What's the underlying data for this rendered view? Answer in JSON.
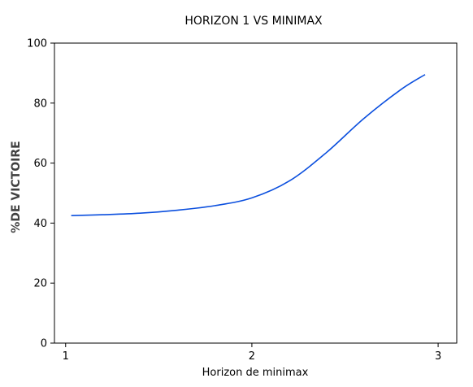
{
  "chart_data": {
    "type": "line",
    "title": "HORIZON 1 VS MINIMAX",
    "xlabel": "Horizon de minimax",
    "ylabel": "%DE VICTOIRE",
    "xlim": [
      0.94,
      3.1
    ],
    "ylim": [
      0,
      100
    ],
    "x_ticks": [
      1,
      2,
      3
    ],
    "y_ticks": [
      0,
      20,
      40,
      60,
      80,
      100
    ],
    "grid": false,
    "series": [
      {
        "color": "#0b4fde",
        "x": [
          1.03,
          1.2,
          1.4,
          1.6,
          1.8,
          2.0,
          2.2,
          2.4,
          2.6,
          2.8,
          2.93
        ],
        "y": [
          42.5,
          42.8,
          43.3,
          44.3,
          45.8,
          48.4,
          54.0,
          63.5,
          74.8,
          84.5,
          89.5
        ]
      }
    ]
  }
}
